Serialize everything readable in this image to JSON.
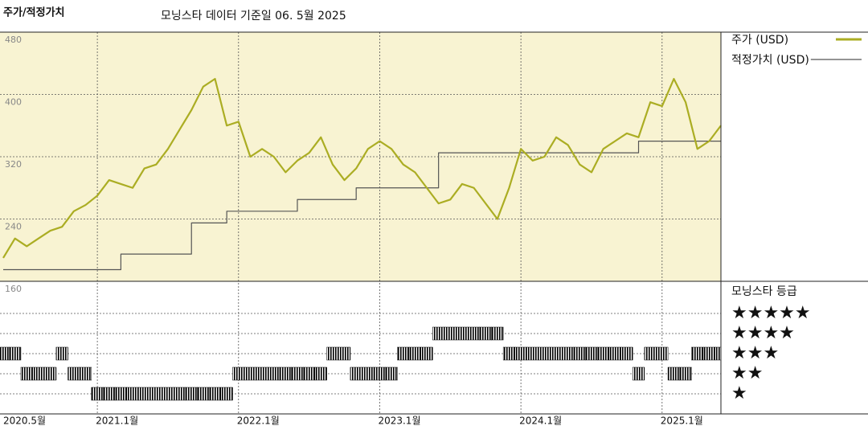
{
  "chart_data": {
    "type": "line",
    "title": "주가/적정가치",
    "subtitle": "모닝스타 데이터 기준일 06. 5월 2025",
    "x": [
      "2020-05",
      "2020-06",
      "2020-07",
      "2020-08",
      "2020-09",
      "2020-10",
      "2020-11",
      "2020-12",
      "2021-01",
      "2021-02",
      "2021-03",
      "2021-04",
      "2021-05",
      "2021-06",
      "2021-07",
      "2021-08",
      "2021-09",
      "2021-10",
      "2021-11",
      "2021-12",
      "2022-01",
      "2022-02",
      "2022-03",
      "2022-04",
      "2022-05",
      "2022-06",
      "2022-07",
      "2022-08",
      "2022-09",
      "2022-10",
      "2022-11",
      "2022-12",
      "2023-01",
      "2023-02",
      "2023-03",
      "2023-04",
      "2023-05",
      "2023-06",
      "2023-07",
      "2023-08",
      "2023-09",
      "2023-10",
      "2023-11",
      "2023-12",
      "2024-01",
      "2024-02",
      "2024-03",
      "2024-04",
      "2024-05",
      "2024-06",
      "2024-07",
      "2024-08",
      "2024-09",
      "2024-10",
      "2024-11",
      "2024-12",
      "2025-01",
      "2025-02",
      "2025-03",
      "2025-04",
      "2025-05",
      "2025-06"
    ],
    "xlim": [
      "2020-05",
      "2025-06"
    ],
    "xticks": [
      {
        "value": "2020-05",
        "label": "2020.5월"
      },
      {
        "value": "2021-01",
        "label": "2021.1월"
      },
      {
        "value": "2022-01",
        "label": "2022.1월"
      },
      {
        "value": "2023-01",
        "label": "2023.1월"
      },
      {
        "value": "2024-01",
        "label": "2024.1월"
      },
      {
        "value": "2025-01",
        "label": "2025.1월"
      }
    ],
    "ylim": [
      160,
      480
    ],
    "yticks": [
      160,
      240,
      320,
      400,
      480
    ],
    "grid": true,
    "series": [
      {
        "name": "주가 (USD)",
        "color": "#abad23",
        "values": [
          190,
          215,
          205,
          215,
          225,
          230,
          250,
          258,
          270,
          290,
          285,
          280,
          305,
          310,
          330,
          355,
          380,
          410,
          420,
          360,
          365,
          320,
          330,
          320,
          300,
          315,
          325,
          345,
          310,
          290,
          305,
          330,
          340,
          330,
          310,
          300,
          280,
          260,
          265,
          285,
          280,
          260,
          240,
          280,
          330,
          315,
          320,
          345,
          335,
          310,
          300,
          330,
          340,
          350,
          345,
          390,
          385,
          420,
          390,
          330,
          340,
          360
        ]
      },
      {
        "name": "적정가치 (USD)",
        "color": "#555555",
        "step": true,
        "values": [
          175,
          175,
          175,
          175,
          175,
          175,
          175,
          175,
          175,
          175,
          195,
          195,
          195,
          195,
          195,
          195,
          235,
          235,
          235,
          250,
          250,
          250,
          250,
          250,
          250,
          265,
          265,
          265,
          265,
          265,
          280,
          280,
          280,
          280,
          280,
          280,
          280,
          325,
          325,
          325,
          325,
          325,
          325,
          325,
          325,
          325,
          325,
          325,
          325,
          325,
          325,
          325,
          325,
          325,
          340,
          340,
          340,
          340,
          340,
          340,
          340,
          340
        ]
      }
    ],
    "rating": {
      "title": "모닝스타 등급",
      "color": "#000000",
      "ylim": [
        0,
        6.6
      ],
      "yticks": [
        {
          "value": 5,
          "label": "★★★★★"
        },
        {
          "value": 4,
          "label": "★★★★"
        },
        {
          "value": 3,
          "label": "★★★"
        },
        {
          "value": 2,
          "label": "★★"
        },
        {
          "value": 1,
          "label": "★"
        }
      ],
      "values": [
        3,
        3,
        2,
        2,
        2,
        3,
        2,
        2,
        1,
        1,
        1,
        1,
        1,
        1,
        1,
        1,
        1,
        1,
        1,
        1,
        2,
        2,
        2,
        2,
        2,
        2,
        2,
        2,
        3,
        3,
        2,
        2,
        2,
        2,
        3,
        3,
        3,
        4,
        4,
        4,
        4,
        4,
        4,
        3,
        3,
        3,
        3,
        3,
        3,
        3,
        3,
        3,
        3,
        3,
        2,
        3,
        3,
        2,
        2,
        3,
        3,
        3
      ]
    }
  }
}
